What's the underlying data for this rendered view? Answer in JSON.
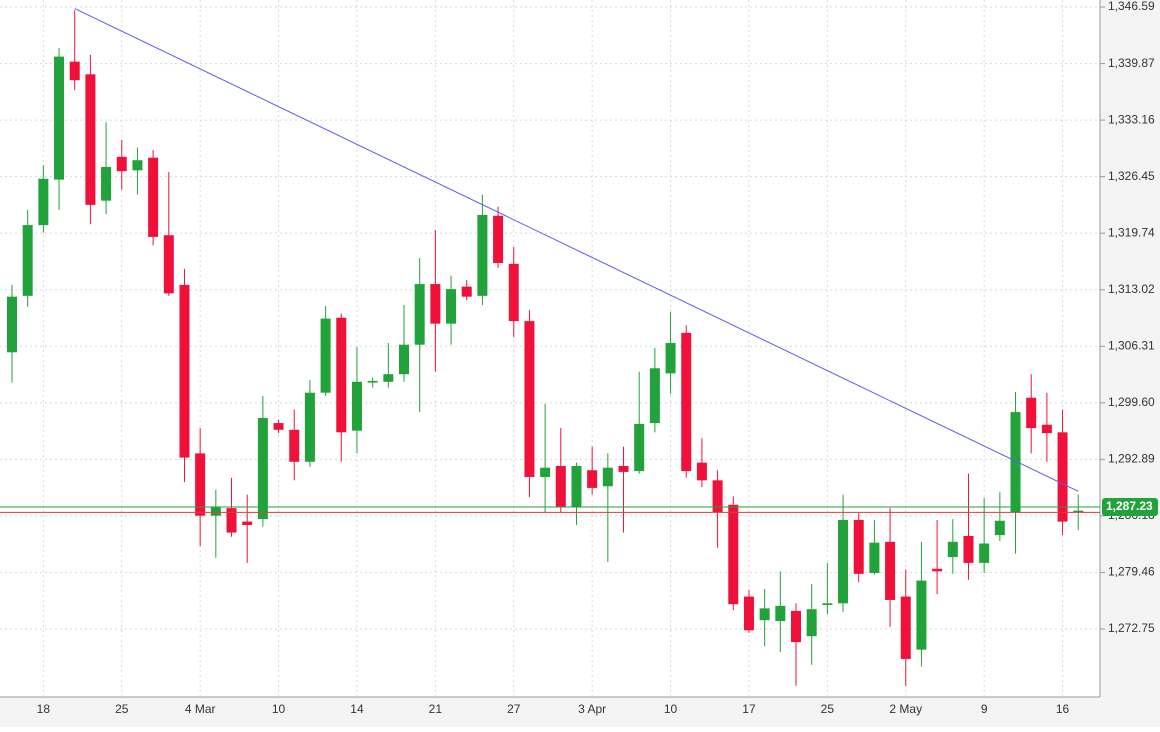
{
  "chart_data": {
    "type": "candlestick",
    "categories": [
      null,
      null,
      "18",
      null,
      null,
      null,
      null,
      "25",
      null,
      null,
      null,
      null,
      "4 Mar",
      null,
      null,
      null,
      null,
      "10",
      null,
      null,
      null,
      null,
      "14",
      null,
      null,
      null,
      null,
      "21",
      null,
      null,
      null,
      null,
      "27",
      null,
      null,
      null,
      null,
      "3 Apr",
      null,
      null,
      null,
      null,
      "10",
      null,
      null,
      null,
      null,
      "17",
      null,
      null,
      null,
      null,
      "25",
      null,
      null,
      null,
      null,
      "2 May",
      null,
      null,
      null,
      null,
      "9",
      null,
      null,
      null,
      null,
      "16",
      null
    ],
    "open": [
      1305.6,
      1312.3,
      1320.7,
      1326.1,
      1340.1,
      1338.6,
      1323.6,
      1328.8,
      1327.2,
      1328.7,
      1319.5,
      1313.6,
      1293.6,
      1286.2,
      1287.1,
      1285.5,
      1285.8,
      1297.2,
      1296.4,
      1292.6,
      1300.8,
      1309.7,
      1296.3,
      1302.0,
      1302.1,
      1303.0,
      1306.5,
      1313.7,
      1309.0,
      1313.4,
      1312.3,
      1321.8,
      1316.1,
      1309.3,
      1290.8,
      1292.1,
      1287.2,
      1291.6,
      1289.7,
      1292.1,
      1291.5,
      1297.2,
      1303.1,
      1307.9,
      1292.5,
      1290.4,
      1287.5,
      1276.6,
      1273.8,
      1273.7,
      1274.9,
      1271.9,
      1275.6,
      1275.8,
      1285.7,
      1279.4,
      1283.1,
      1276.6,
      1270.3,
      1279.9,
      1281.3,
      1283.8,
      1280.6,
      1283.9,
      1286.6,
      1300.2,
      1297.0,
      1296.1,
      1286.6
    ],
    "high": [
      1313.6,
      1322.5,
      1327.8,
      1341.7,
      1346.2,
      1340.9,
      1332.9,
      1330.8,
      1329.9,
      1329.6,
      1327.0,
      1315.5,
      1296.6,
      1289.3,
      1290.7,
      1288.7,
      1300.4,
      1297.6,
      1298.8,
      1302.3,
      1311.1,
      1310.2,
      1306.2,
      1302.6,
      1306.7,
      1311.2,
      1316.8,
      1320.1,
      1314.7,
      1314.2,
      1324.3,
      1322.9,
      1318.1,
      1310.6,
      1299.5,
      1296.6,
      1292.5,
      1294.4,
      1293.6,
      1294.4,
      1303.3,
      1306.1,
      1310.4,
      1308.8,
      1295.4,
      1291.6,
      1288.5,
      1277.4,
      1277.5,
      1279.6,
      1275.8,
      1278.1,
      1280.6,
      1288.7,
      1286.5,
      1285.7,
      1287.1,
      1279.8,
      1283.1,
      1285.7,
      1285.8,
      1291.2,
      1288.3,
      1289.0,
      1300.9,
      1303.0,
      1300.8,
      1298.8,
      1288.7
    ],
    "low": [
      1302.0,
      1311.0,
      1319.8,
      1322.5,
      1336.7,
      1320.8,
      1322.0,
      1324.9,
      1324.3,
      1318.3,
      1312.3,
      1290.2,
      1282.6,
      1281.2,
      1283.7,
      1280.6,
      1284.9,
      1296.0,
      1290.4,
      1292.0,
      1300.4,
      1292.6,
      1293.6,
      1301.4,
      1301.4,
      1302.1,
      1298.5,
      1303.3,
      1306.5,
      1311.8,
      1311.2,
      1315.6,
      1307.4,
      1288.4,
      1286.6,
      1286.6,
      1285.1,
      1288.7,
      1280.7,
      1284.2,
      1291.2,
      1296.1,
      1300.7,
      1290.7,
      1289.6,
      1282.4,
      1275.0,
      1272.3,
      1270.7,
      1270.0,
      1266.0,
      1268.5,
      1274.5,
      1274.8,
      1278.3,
      1279.2,
      1273.0,
      1266.0,
      1268.3,
      1276.9,
      1279.3,
      1278.6,
      1279.4,
      1283.2,
      1281.7,
      1293.6,
      1292.6,
      1283.9,
      1284.5
    ],
    "close": [
      1312.2,
      1320.7,
      1326.2,
      1340.7,
      1337.9,
      1323.1,
      1327.6,
      1327.1,
      1328.4,
      1319.3,
      1312.6,
      1293.1,
      1286.2,
      1287.2,
      1284.2,
      1285.1,
      1297.8,
      1296.4,
      1292.6,
      1300.8,
      1309.6,
      1296.1,
      1302.1,
      1302.2,
      1303.0,
      1306.5,
      1313.7,
      1309.0,
      1313.1,
      1312.2,
      1321.9,
      1316.2,
      1309.3,
      1290.8,
      1291.9,
      1287.2,
      1292.1,
      1289.5,
      1291.9,
      1291.4,
      1297.1,
      1303.7,
      1306.7,
      1291.5,
      1290.4,
      1286.6,
      1275.7,
      1272.6,
      1275.2,
      1275.5,
      1271.2,
      1275.1,
      1275.8,
      1285.7,
      1279.3,
      1283.0,
      1276.2,
      1269.2,
      1278.5,
      1279.6,
      1283.1,
      1280.6,
      1282.9,
      1285.6,
      1298.5,
      1296.6,
      1296.0,
      1285.5,
      1286.8
    ],
    "up_color": "#22a23a",
    "down_color": "#f0113a",
    "ylim": [
      1264.68,
      1347.42
    ],
    "yticks": [
      {
        "value": 1346.59,
        "label": "1,346.59"
      },
      {
        "value": 1339.87,
        "label": "1,339.87"
      },
      {
        "value": 1333.16,
        "label": "1,333.16"
      },
      {
        "value": 1326.45,
        "label": "1,326.45"
      },
      {
        "value": 1319.74,
        "label": "1,319.74"
      },
      {
        "value": 1313.02,
        "label": "1,313.02"
      },
      {
        "value": 1306.31,
        "label": "1,306.31"
      },
      {
        "value": 1299.6,
        "label": "1,299.60"
      },
      {
        "value": 1292.89,
        "label": "1,292.89"
      },
      {
        "value": 1286.18,
        "label": "1,286.18"
      },
      {
        "value": 1279.46,
        "label": "1,279.46"
      },
      {
        "value": 1272.75,
        "label": "1,272.75"
      }
    ],
    "grid": true,
    "trendline": {
      "start_index": 4,
      "start_value": 1346.4,
      "end_index": 68,
      "end_value": 1289.1,
      "color": "#5b5bf0"
    },
    "price_lines": [
      {
        "value": 1287.23,
        "label": "1,287.23",
        "color": "#22a23a"
      },
      {
        "value": 1286.6,
        "color": "#e23a3a"
      }
    ]
  }
}
